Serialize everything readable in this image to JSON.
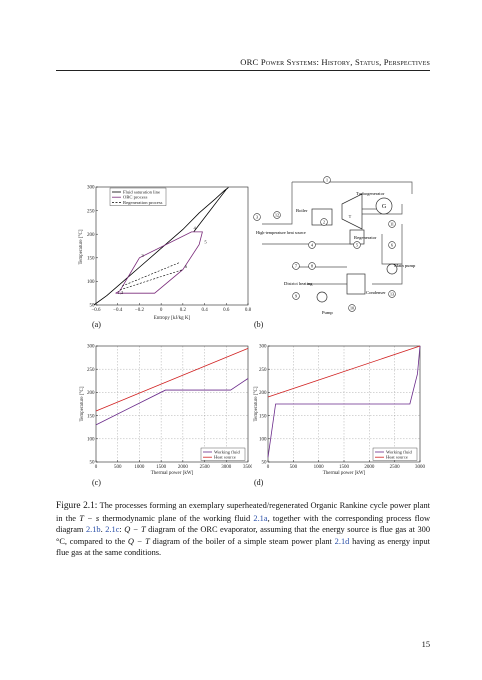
{
  "header": {
    "running_title": "ORC Power Systems: History, Status, Perspectives"
  },
  "panels": {
    "a": {
      "label": "(a)"
    },
    "b": {
      "label": "(b)"
    },
    "c": {
      "label": "(c)"
    },
    "d": {
      "label": "(d)"
    }
  },
  "chart_data": [
    {
      "id": "a",
      "type": "line",
      "xlabel": "Entropy [kJ/kg K]",
      "ylabel": "Temperature [°C]",
      "xlim": [
        -0.6,
        0.8
      ],
      "ylim": [
        50,
        300
      ],
      "xticks": [
        "−0.6",
        "−0.4",
        "−0.2",
        "0",
        "0.2",
        "0.4",
        "0.6",
        "0.8"
      ],
      "yticks": [
        "50",
        "100",
        "150",
        "200",
        "250",
        "300"
      ],
      "legend": [
        "Fluid saturation line",
        "ORC process",
        "Regeneration process"
      ],
      "legend_position": "top-left",
      "point_labels": [
        "1",
        "2",
        "3",
        "4",
        "5",
        "6",
        "1,2"
      ],
      "series": [
        {
          "name": "Fluid saturation line",
          "style": "solid",
          "color": "#000000",
          "x": [
            -0.62,
            -0.5,
            -0.35,
            -0.2,
            0.0,
            0.2,
            0.35,
            0.5,
            0.58,
            0.62,
            0.6,
            0.55,
            0.45,
            0.35,
            0.3
          ],
          "y": [
            50,
            70,
            100,
            130,
            170,
            210,
            245,
            275,
            292,
            299,
            295,
            280,
            250,
            220,
            205
          ]
        },
        {
          "name": "ORC process",
          "style": "solid",
          "color": "#7a2a7a",
          "x": [
            -0.42,
            -0.38,
            -0.2,
            0.28,
            0.38,
            0.35,
            0.2,
            -0.06,
            -0.42
          ],
          "y": [
            75,
            80,
            150,
            205,
            205,
            178,
            125,
            75,
            75
          ]
        },
        {
          "name": "Regeneration process",
          "style": "dashed",
          "color": "#000000",
          "x": [
            -0.38,
            0.2,
            -0.36,
            0.17
          ],
          "y": [
            82,
            125,
            90,
            140
          ]
        }
      ]
    },
    {
      "id": "c",
      "type": "line",
      "xlabel": "Thermal power [kW]",
      "ylabel": "Temperature [°C]",
      "xlim": [
        0,
        3500
      ],
      "ylim": [
        50,
        300
      ],
      "xticks": [
        "0",
        "500",
        "1000",
        "1500",
        "2000",
        "2500",
        "3000",
        "3500"
      ],
      "yticks": [
        "50",
        "100",
        "150",
        "200",
        "250",
        "300"
      ],
      "legend": [
        "Working fluid",
        "Heat source"
      ],
      "legend_position": "bottom-right",
      "series": [
        {
          "name": "Working fluid",
          "color": "#6a2a8a",
          "x": [
            0,
            1600,
            3100,
            3500
          ],
          "y": [
            130,
            205,
            205,
            230
          ]
        },
        {
          "name": "Heat source",
          "color": "#d02020",
          "x": [
            0,
            3500
          ],
          "y": [
            160,
            295
          ]
        }
      ]
    },
    {
      "id": "d",
      "type": "line",
      "xlabel": "Thermal power [kW]",
      "ylabel": "Temperature [°C]",
      "xlim": [
        0,
        3000
      ],
      "ylim": [
        50,
        300
      ],
      "xticks": [
        "0",
        "500",
        "1000",
        "1500",
        "2000",
        "2500",
        "3000"
      ],
      "yticks": [
        "50",
        "100",
        "150",
        "200",
        "250",
        "300"
      ],
      "legend": [
        "Working fluid",
        "Heat source"
      ],
      "legend_position": "bottom-right",
      "series": [
        {
          "name": "Working fluid",
          "color": "#6a2a8a",
          "x": [
            0,
            150,
            2800,
            2950,
            3000
          ],
          "y": [
            60,
            175,
            175,
            240,
            300
          ]
        },
        {
          "name": "Heat source",
          "color": "#d02020",
          "x": [
            0,
            3000
          ],
          "y": [
            190,
            300
          ]
        }
      ]
    }
  ],
  "diagram_b": {
    "labels": {
      "turbogenerator": "Turbogenerator",
      "boiler": "Boiler",
      "heat_source": "High-temperature\nheat source",
      "regenerator": "Regenerator",
      "district_heating": "District heating",
      "main_pump": "Main pump",
      "condenser": "Condenser",
      "pump": "Pump",
      "g": "G",
      "t": "T"
    },
    "state_numbers": [
      "1",
      "2",
      "3",
      "4",
      "5",
      "6",
      "7",
      "8",
      "9",
      "10",
      "11",
      "12",
      "13"
    ]
  },
  "caption": {
    "figure": "Figure 2.1:",
    "parts": [
      " The processes forming an exemplary superheated/regenerated Organic Rankine cycle power plant in the ",
      "T − s",
      " thermodynamic plane of the working fluid ",
      "2.1a",
      ", together with the corresponding process flow diagram ",
      "2.1b",
      ". ",
      "2.1c",
      ": ",
      "Q − T",
      " diagram of the ORC evaporator, assuming that the energy source is flue gas at 300 °C, compared to the ",
      "Q − T",
      " diagram of the boiler of a simple steam power plant ",
      "2.1d",
      " having as energy input flue gas at the same conditions."
    ]
  },
  "page_number": "15"
}
